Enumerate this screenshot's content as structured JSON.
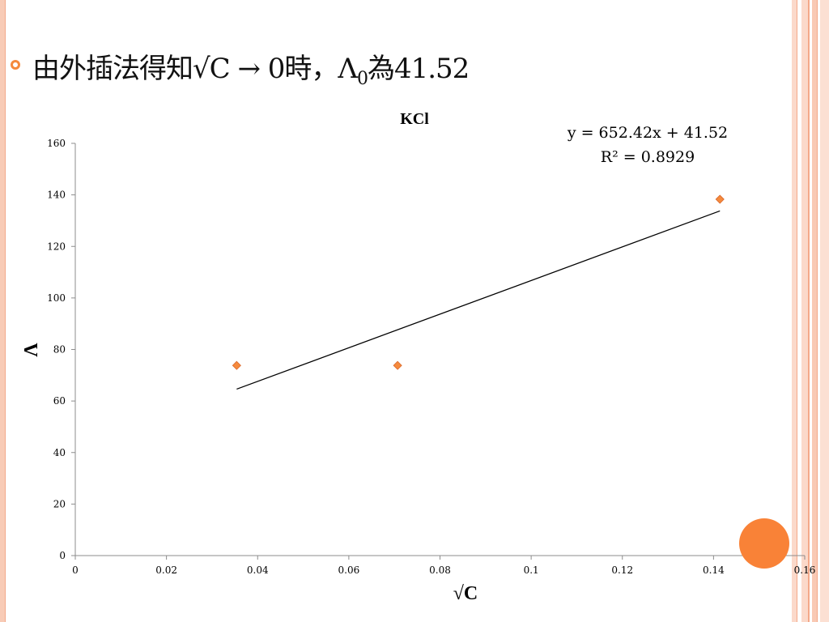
{
  "headline": {
    "text_main": "由外插法得知√C → 0時，Λ",
    "subscript": "0",
    "text_tail": "為41.52"
  },
  "colors": {
    "accent": "#f58a3d",
    "marker": "#f58a3d",
    "marker_edge": "#d9662a",
    "stripe_light": "#fbd5c5",
    "stripe_mid": "#f6b79c",
    "deco_circle": "#f98237"
  },
  "chart_data": {
    "type": "scatter",
    "title": "KCl",
    "xlabel": "√C",
    "ylabel": "Λ",
    "xlim": [
      0,
      0.16
    ],
    "ylim": [
      0,
      160
    ],
    "x_ticks": [
      "0",
      "0.02",
      "0.04",
      "0.06",
      "0.08",
      "0.1",
      "0.12",
      "0.14",
      "0.16"
    ],
    "y_ticks": [
      "0",
      "20",
      "40",
      "60",
      "80",
      "100",
      "120",
      "140",
      "160"
    ],
    "grid": false,
    "legend": "none",
    "points": [
      {
        "x": 0.0354,
        "y": 73.8
      },
      {
        "x": 0.0707,
        "y": 73.8
      },
      {
        "x": 0.1414,
        "y": 138.3
      }
    ],
    "trendline": {
      "slope": 652.42,
      "intercept": 41.52,
      "x_start": 0.0354,
      "x_end": 0.1414,
      "equation": "y = 652.42x + 41.52",
      "r_squared": "R² = 0.8929"
    }
  }
}
